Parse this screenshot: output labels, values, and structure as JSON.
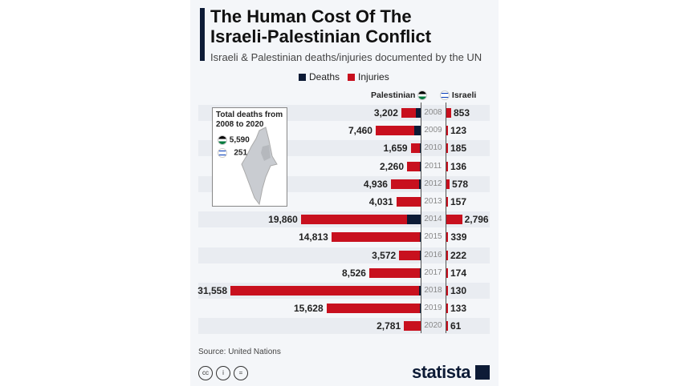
{
  "title_line1": "The Human Cost Of The",
  "title_line2": "Israeli-Palestinian Conflict",
  "subtitle": "Israeli & Palestinian deaths/injuries documented by the UN",
  "legend": {
    "deaths": "Deaths",
    "injuries": "Injuries"
  },
  "colors": {
    "deaths": "#0d1b36",
    "injuries": "#c8101e"
  },
  "headers": {
    "palestinian": "Palestinian",
    "israeli": "Israeli"
  },
  "inset": {
    "title_line1": "Total deaths from",
    "title_line2": "2008 to 2020",
    "palestinian_total": "5,590",
    "israeli_total": "251"
  },
  "chart_data": {
    "type": "bar",
    "orientation": "horizontal-diverging",
    "categories": [
      "2008",
      "2009",
      "2010",
      "2011",
      "2012",
      "2013",
      "2014",
      "2015",
      "2016",
      "2017",
      "2018",
      "2019",
      "2020"
    ],
    "palestinian_total": [
      3202,
      7460,
      1659,
      2260,
      4936,
      4031,
      19860,
      14813,
      3572,
      8526,
      31558,
      15628,
      2781
    ],
    "palestinian_total_labels": [
      "3,202",
      "7,460",
      "1,659",
      "2,260",
      "4,936",
      "4,031",
      "19,860",
      "14,813",
      "3,572",
      "8,526",
      "31,558",
      "15,628",
      "2,781"
    ],
    "palestinian_deaths_est": [
      855,
      1066,
      95,
      124,
      260,
      39,
      2329,
      174,
      109,
      77,
      299,
      133,
      30
    ],
    "israeli_total": [
      853,
      123,
      185,
      136,
      578,
      157,
      2796,
      339,
      222,
      174,
      130,
      133,
      61
    ],
    "israeli_total_labels": [
      "853",
      "123",
      "185",
      "136",
      "578",
      "157",
      "2,796",
      "339",
      "222",
      "174",
      "130",
      "133",
      "61"
    ],
    "israeli_deaths_est": [
      35,
      9,
      9,
      11,
      7,
      6,
      88,
      25,
      16,
      18,
      14,
      10,
      3
    ]
  },
  "source": "Source: United Nations",
  "brand": "statista"
}
